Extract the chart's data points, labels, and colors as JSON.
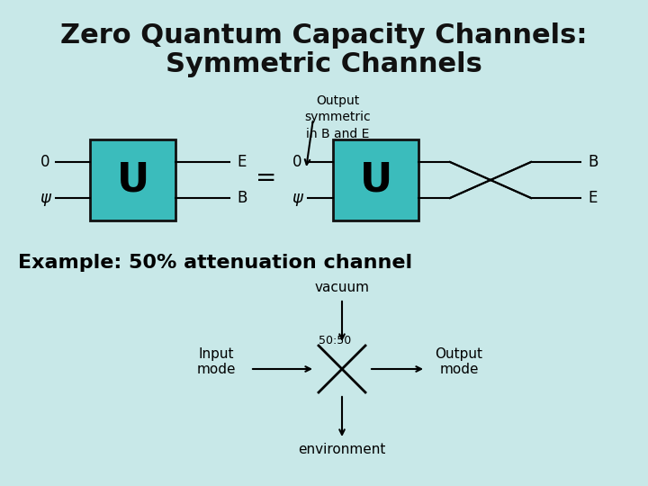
{
  "bg_color": "#c8e8e8",
  "title_line1": "Zero Quantum Capacity Channels:",
  "title_line2": "Symmetric Channels",
  "title_fontsize": 22,
  "title_color": "#111111",
  "box_color": "#3bbcbc",
  "box_edge_color": "#111111",
  "annotation_text": "Output\nsymmetric\nin B and E",
  "example_text": "Example: 50% attenuation channel",
  "vacuum_text": "vacuum",
  "input_text": "Input\nmode",
  "output_text": "Output\nmode",
  "env_text": "environment",
  "splitter_text": "50:50",
  "label_0": "0",
  "label_psi": "ψ",
  "label_E": "E",
  "label_B": "B",
  "label_U": "U",
  "label_eq": "="
}
